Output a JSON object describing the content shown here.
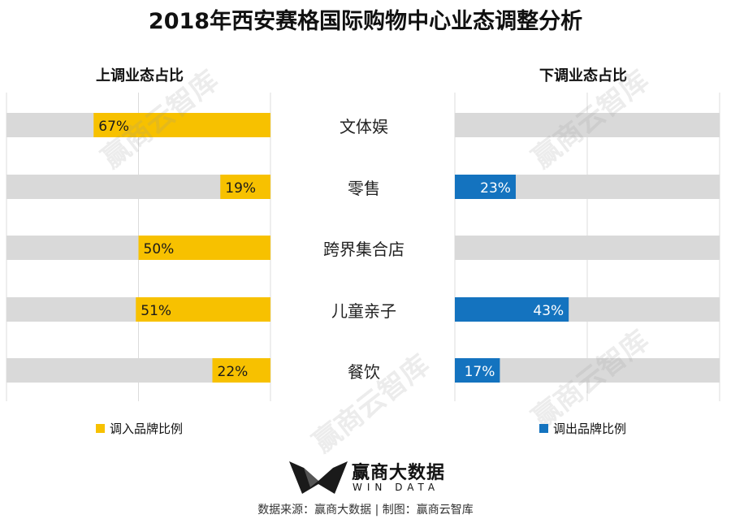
{
  "title": "2018年西安赛格国际购物中心业态调整分析",
  "left_panel_title": "上调业态占比",
  "right_panel_title": "下调业态占比",
  "legend": {
    "left": "调入品牌比例",
    "right": "调出品牌比例"
  },
  "watermark": "赢商云智库",
  "logo": {
    "name": "赢商大数据",
    "sub": "WIN DATA"
  },
  "source": "数据来源：赢商大数据 | 制图：赢商云智库",
  "colors": {
    "left_bar": "#F7C100",
    "right_bar": "#1473BF",
    "track": "#D9D9D9",
    "grid": "#DCDCDC"
  },
  "chart_data": {
    "type": "bar",
    "categories": [
      "文体娱",
      "零售",
      "跨界集合店",
      "儿童亲子",
      "餐饮"
    ],
    "series": [
      {
        "name": "调入品牌比例",
        "values": [
          67,
          19,
          50,
          51,
          22
        ],
        "labels": [
          "67%",
          "19%",
          "50%",
          "51%",
          "22%"
        ]
      },
      {
        "name": "调出品牌比例",
        "values": [
          null,
          23,
          null,
          43,
          17
        ],
        "labels": [
          "",
          "23%",
          "",
          "43%",
          "17%"
        ]
      }
    ],
    "xlim": [
      0,
      100
    ],
    "grid": true,
    "legend": "bottom"
  }
}
